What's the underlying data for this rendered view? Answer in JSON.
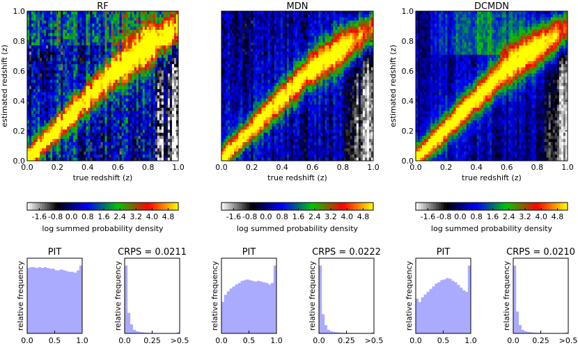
{
  "chart_data": [
    {
      "type": "heatmap",
      "title": "RF",
      "xlabel": "true redshift (z)",
      "ylabel": "estimated redshift (z)",
      "xlim": [
        0.0,
        1.0
      ],
      "ylim": [
        0.0,
        1.0
      ],
      "xticks": [
        "0.0",
        "0.2",
        "0.4",
        "0.6",
        "0.8",
        "1.0"
      ],
      "yticks": [
        "0.0",
        "0.2",
        "0.4",
        "0.6",
        "0.8",
        "1.0"
      ],
      "colorbar": {
        "label": "log summed probability density",
        "ticks": [
          "-1.6",
          "-0.8",
          "0.0",
          "0.8",
          "1.6",
          "2.4",
          "3.2",
          "4.0",
          "4.8"
        ],
        "tick_values": [
          -1.6,
          -0.8,
          0.0,
          0.8,
          1.6,
          2.4,
          3.2,
          4.0,
          4.8
        ],
        "range": [
          -2.2,
          5.3
        ],
        "colors": [
          "#ffffff",
          "#000000",
          "#0000ff",
          "#00cc00",
          "#ff0000",
          "#ffff00"
        ]
      },
      "pit": {
        "title": "PIT",
        "ylabel": "relative frequency",
        "xticks": [
          "0.0",
          "0.5",
          "1.0"
        ],
        "values": [
          0.83,
          0.84,
          0.84,
          0.83,
          0.84,
          0.83,
          0.84,
          0.83,
          0.82,
          0.82,
          0.8,
          0.8,
          0.81,
          0.8,
          0.79,
          0.78,
          0.78,
          0.77,
          0.8,
          0.86
        ],
        "color": "#aaaaff"
      },
      "crps": {
        "title": "CRPS = 0.0211",
        "ylabel": "relative frequency",
        "xticks": [
          "0.0",
          "0.25",
          ">0.5"
        ],
        "values": [
          1.0,
          0.3,
          0.13,
          0.05,
          0.03,
          0.02,
          0.015,
          0.01,
          0.008,
          0.006,
          0.005,
          0.004,
          0.003,
          0.003,
          0.002,
          0.002,
          0.002,
          0.002,
          0.002,
          0.015
        ],
        "color": "#aaaaff"
      }
    },
    {
      "type": "heatmap",
      "title": "MDN",
      "xlabel": "true redshift (z)",
      "ylabel": "",
      "xlim": [
        0.0,
        1.0
      ],
      "ylim": [
        0.0,
        1.0
      ],
      "xticks": [
        "0.0",
        "0.2",
        "0.4",
        "0.6",
        "0.8",
        "1.0"
      ],
      "yticks": [],
      "colorbar": {
        "label": "log summed probability density",
        "ticks": [
          "-1.6",
          "-0.8",
          "0.0",
          "0.8",
          "1.6",
          "2.4",
          "3.2",
          "4.0",
          "4.8"
        ],
        "tick_values": [
          -1.6,
          -0.8,
          0.0,
          0.8,
          1.6,
          2.4,
          3.2,
          4.0,
          4.8
        ],
        "range": [
          -2.2,
          5.3
        ],
        "colors": [
          "#ffffff",
          "#000000",
          "#0000ff",
          "#00cc00",
          "#ff0000",
          "#ffff00"
        ]
      },
      "pit": {
        "title": "PIT",
        "ylabel": "relative frequency",
        "xticks": [
          "0.0",
          "0.5",
          "1.0"
        ],
        "values": [
          0.45,
          0.55,
          0.6,
          0.64,
          0.67,
          0.7,
          0.72,
          0.75,
          0.76,
          0.77,
          0.76,
          0.75,
          0.74,
          0.75,
          0.74,
          0.73,
          0.72,
          0.7,
          0.72,
          0.97
        ],
        "color": "#aaaaff"
      },
      "crps": {
        "title": "CRPS = 0.0222",
        "ylabel": "relative frequency",
        "xticks": [
          "0.0",
          "0.25",
          ">0.5"
        ],
        "values": [
          1.0,
          0.28,
          0.12,
          0.05,
          0.03,
          0.02,
          0.015,
          0.01,
          0.008,
          0.006,
          0.005,
          0.004,
          0.003,
          0.003,
          0.002,
          0.002,
          0.002,
          0.002,
          0.002,
          0.012
        ],
        "color": "#aaaaff"
      }
    },
    {
      "type": "heatmap",
      "title": "DCMDN",
      "xlabel": "true redshift (z)",
      "ylabel": "estimated redshift (z)",
      "xlim": [
        0.0,
        1.0
      ],
      "ylim": [
        0.0,
        1.0
      ],
      "xticks": [
        "0.0",
        "0.2",
        "0.4",
        "0.6",
        "0.8",
        "1.0"
      ],
      "yticks": [
        "0.0",
        "0.2",
        "0.4",
        "0.6",
        "0.8",
        "1.0"
      ],
      "colorbar": {
        "label": "log summed probability density",
        "ticks": [
          "-1.6",
          "-0.8",
          "0.0",
          "0.8",
          "1.6",
          "2.4",
          "3.2",
          "4.0",
          "4.8"
        ],
        "tick_values": [
          -1.6,
          -0.8,
          0.0,
          0.8,
          1.6,
          2.4,
          3.2,
          4.0,
          4.8
        ],
        "range": [
          -2.2,
          5.3
        ],
        "colors": [
          "#ffffff",
          "#000000",
          "#0000ff",
          "#00cc00",
          "#ff0000",
          "#ffff00"
        ]
      },
      "pit": {
        "title": "PIT",
        "ylabel": "relative frequency",
        "xticks": [
          "0.0",
          "0.5",
          "1.0"
        ],
        "values": [
          0.5,
          0.45,
          0.52,
          0.56,
          0.6,
          0.64,
          0.68,
          0.72,
          0.74,
          0.77,
          0.78,
          0.8,
          0.79,
          0.76,
          0.74,
          0.7,
          0.66,
          0.62,
          0.6,
          0.98
        ],
        "color": "#aaaaff"
      },
      "crps": {
        "title": "CRPS = 0.0210",
        "ylabel": "relative frequency",
        "xticks": [
          "0.0",
          "0.25",
          ">0.5"
        ],
        "values": [
          1.0,
          0.32,
          0.12,
          0.05,
          0.03,
          0.02,
          0.015,
          0.01,
          0.008,
          0.006,
          0.005,
          0.004,
          0.003,
          0.003,
          0.002,
          0.002,
          0.002,
          0.002,
          0.002,
          0.012
        ],
        "color": "#aaaaff"
      }
    }
  ]
}
